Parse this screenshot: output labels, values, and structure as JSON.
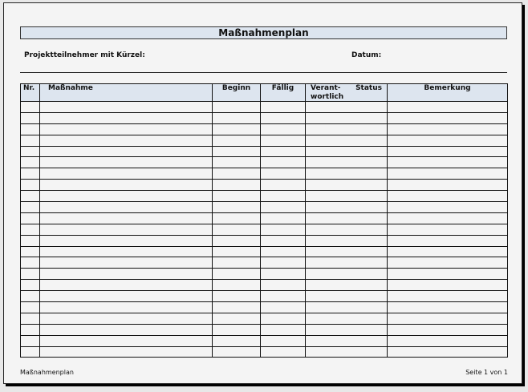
{
  "title": "Maßnahmenplan",
  "participants_label": "Projektteilnehmer mit Kürzel:",
  "date_label": "Datum:",
  "table": {
    "headers": [
      "Nr.",
      "Maßnahme",
      "Beginn",
      "Fällig",
      "Verant-wortlich",
      "Status",
      "Bemerkung"
    ],
    "header_verant_line1": "Verant-",
    "header_verant_line2": "wortlich",
    "empty_rows": 23
  },
  "footer": {
    "left": "Maßnahmenplan",
    "right": "Seite 1 von 1"
  }
}
